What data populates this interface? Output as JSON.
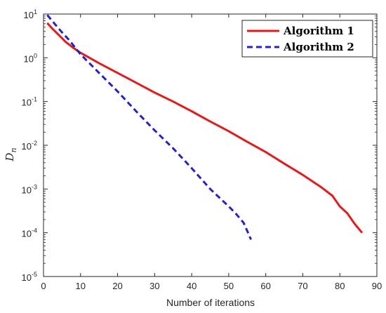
{
  "chart_data": {
    "type": "line",
    "xlabel": "Number of iterations",
    "ylabel": "D",
    "ylabel_sub": "n",
    "xlim": [
      0,
      90
    ],
    "ylim_log10": [
      -5,
      1
    ],
    "yscale": "log",
    "grid": false,
    "legend_position": "top-right",
    "x_ticks": [
      "0",
      "10",
      "20",
      "30",
      "40",
      "50",
      "60",
      "70",
      "80",
      "90"
    ],
    "y_ticks": [
      {
        "base": "10",
        "exp": "1"
      },
      {
        "base": "10",
        "exp": "0"
      },
      {
        "base": "10",
        "exp": "-1"
      },
      {
        "base": "10",
        "exp": "-2"
      },
      {
        "base": "10",
        "exp": "-3"
      },
      {
        "base": "10",
        "exp": "-4"
      },
      {
        "base": "10",
        "exp": "-5"
      }
    ],
    "series": [
      {
        "name": "Algorithm 1",
        "color": "#e41a1c",
        "style": "solid",
        "x": [
          1,
          2,
          4,
          6,
          8,
          10,
          15,
          20,
          25,
          30,
          35,
          40,
          45,
          50,
          55,
          60,
          65,
          70,
          75,
          78,
          80,
          82,
          84,
          86
        ],
        "y": [
          6.2,
          5.0,
          3.4,
          2.3,
          1.7,
          1.3,
          0.75,
          0.45,
          0.27,
          0.16,
          0.1,
          0.06,
          0.035,
          0.021,
          0.012,
          0.007,
          0.0038,
          0.0021,
          0.0011,
          0.0007,
          0.0004,
          0.00028,
          0.00016,
          0.0001
        ]
      },
      {
        "name": "Algorithm 2",
        "color": "#2222cc",
        "style": "dashed",
        "x": [
          1,
          3,
          5,
          7,
          10,
          15,
          20,
          25,
          30,
          35,
          40,
          45,
          50,
          52,
          54,
          55,
          56
        ],
        "y": [
          9.5,
          6.0,
          3.8,
          2.5,
          1.2,
          0.45,
          0.17,
          0.06,
          0.022,
          0.0085,
          0.003,
          0.001,
          0.0004,
          0.00027,
          0.00017,
          0.00011,
          7e-05
        ]
      }
    ]
  }
}
